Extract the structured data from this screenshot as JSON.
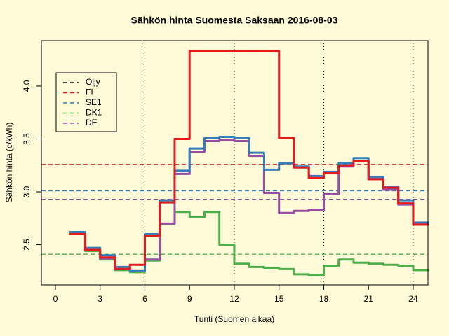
{
  "chart_data": {
    "type": "step",
    "title": "Sähkön hinta Suomesta Saksaan 2016-08-03",
    "x_label": "Tunti (Suomen aikaa)",
    "y_label": "Sähkön hinta (c/kWh)",
    "x": [
      1,
      2,
      3,
      4,
      5,
      6,
      7,
      8,
      9,
      10,
      11,
      12,
      13,
      14,
      15,
      16,
      17,
      18,
      19,
      20,
      21,
      22,
      23,
      24
    ],
    "series": [
      {
        "name": "Öljy",
        "color": "#000000",
        "values": [
          null,
          null,
          null,
          null,
          null,
          null,
          null,
          null,
          null,
          null,
          null,
          null,
          null,
          null,
          null,
          null,
          null,
          null,
          null,
          null,
          null,
          null,
          null,
          null
        ]
      },
      {
        "name": "FI",
        "color": "#e41a1c",
        "level": 3.26,
        "values": [
          2.6,
          2.45,
          2.38,
          2.27,
          2.31,
          2.58,
          2.9,
          3.5,
          4.33,
          4.33,
          4.33,
          4.33,
          4.33,
          4.33,
          3.51,
          3.23,
          3.13,
          3.18,
          3.25,
          3.29,
          3.12,
          3.04,
          2.89,
          2.69
        ]
      },
      {
        "name": "SE1",
        "color": "#377eb8",
        "level": 3.01,
        "values": [
          2.62,
          2.47,
          2.4,
          2.29,
          2.25,
          2.6,
          2.92,
          3.2,
          3.41,
          3.51,
          3.52,
          3.51,
          3.37,
          3.21,
          3.27,
          3.24,
          3.15,
          3.19,
          3.27,
          3.32,
          3.14,
          3.05,
          2.92,
          2.71
        ]
      },
      {
        "name": "DK1",
        "color": "#4daf4a",
        "level": 2.41,
        "values": [
          2.6,
          2.44,
          2.36,
          2.26,
          2.24,
          2.35,
          2.7,
          2.81,
          2.76,
          2.81,
          2.5,
          2.32,
          2.29,
          2.28,
          2.27,
          2.22,
          2.21,
          2.3,
          2.36,
          2.33,
          2.32,
          2.31,
          2.3,
          2.26
        ]
      },
      {
        "name": "DE",
        "color": "#984ea3",
        "level": 2.93,
        "values": [
          2.6,
          2.45,
          2.37,
          2.27,
          2.25,
          2.36,
          2.7,
          3.17,
          3.38,
          3.48,
          3.49,
          3.48,
          3.34,
          2.99,
          2.8,
          2.82,
          2.83,
          2.98,
          3.24,
          3.29,
          3.12,
          3.02,
          2.88,
          2.69
        ]
      }
    ],
    "xlim": [
      -0.94,
      24.99
    ],
    "ylim": [
      2.12,
      4.43
    ],
    "xticks": [
      0,
      3,
      6,
      9,
      12,
      15,
      18,
      21,
      24
    ],
    "yticks": [
      {
        "value": 2.5,
        "label": "2.5"
      },
      {
        "value": 3,
        "label": "3.0"
      },
      {
        "value": 3.5,
        "label": "3.5"
      },
      {
        "value": 4,
        "label": "4.0"
      }
    ],
    "vgrid": [
      6,
      12,
      18,
      24
    ],
    "legend": "topleft"
  }
}
